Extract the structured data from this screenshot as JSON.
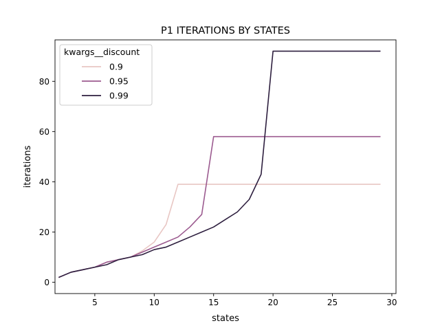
{
  "chart_data": {
    "type": "line",
    "title": "P1 ITERATIONS BY STATES",
    "xlabel": "states",
    "ylabel": "iterations",
    "xlim": [
      1.65,
      30.35
    ],
    "ylim": [
      -4.5,
      96.5
    ],
    "xticks": [
      5,
      10,
      15,
      20,
      25,
      30
    ],
    "yticks": [
      0,
      20,
      40,
      60,
      80
    ],
    "grid": false,
    "legend": {
      "title": "kwargs__discount",
      "placement": "top-left"
    },
    "x": [
      2,
      3,
      4,
      5,
      6,
      7,
      8,
      9,
      10,
      11,
      12,
      13,
      14,
      15,
      16,
      17,
      18,
      19,
      20,
      21,
      22,
      23,
      24,
      25,
      26,
      27,
      28,
      29
    ],
    "series": [
      {
        "name": "0.9",
        "color": "#e8c6c3",
        "values": [
          2,
          4,
          5,
          6,
          8,
          9,
          10,
          12.5,
          16,
          23,
          39,
          39,
          39,
          39,
          39,
          39,
          39,
          39,
          39,
          39,
          39,
          39,
          39,
          39,
          39,
          39,
          39,
          39
        ]
      },
      {
        "name": "0.95",
        "color": "#9b5a8f",
        "values": [
          2,
          4,
          5,
          6,
          8,
          9,
          10,
          12,
          14,
          16,
          18,
          22,
          27,
          58,
          58,
          58,
          58,
          58,
          58,
          58,
          58,
          58,
          58,
          58,
          58,
          58,
          58,
          58
        ]
      },
      {
        "name": "0.99",
        "color": "#2d1e3e",
        "values": [
          2,
          4,
          5,
          6,
          7,
          9,
          10,
          11,
          13,
          14,
          16,
          18,
          20,
          22,
          25,
          28,
          33,
          43,
          92,
          92,
          92,
          92,
          92,
          92,
          92,
          92,
          92,
          92
        ]
      }
    ]
  }
}
